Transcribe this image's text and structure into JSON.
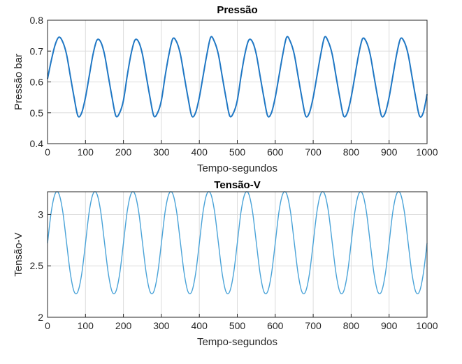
{
  "chart_data": [
    {
      "type": "line",
      "title": "Pressão",
      "xlabel": "Tempo-segundos",
      "ylabel": "Pressão bar",
      "xlim": [
        0,
        1000
      ],
      "ylim": [
        0.4,
        0.8
      ],
      "xticks": [
        "0",
        "100",
        "200",
        "300",
        "400",
        "500",
        "600",
        "700",
        "800",
        "900",
        "1000"
      ],
      "yticks": [
        "0.4",
        "0.5",
        "0.6",
        "0.7",
        "0.8"
      ],
      "grid": true,
      "color": "#1f77c4",
      "series": [
        {
          "x": [
            0,
            10,
            20,
            30,
            40,
            50,
            60,
            70,
            80,
            90,
            100,
            110,
            120,
            130,
            140,
            150,
            160,
            170,
            180,
            190,
            200,
            210,
            220,
            230,
            240,
            250,
            260,
            270,
            280,
            290,
            300,
            310,
            320,
            330,
            340,
            350,
            360,
            370,
            380,
            390,
            400,
            410,
            420,
            430,
            440,
            450,
            460,
            470,
            480,
            490,
            500,
            510,
            520,
            530,
            540,
            550,
            560,
            570,
            580,
            590,
            600,
            610,
            620,
            630,
            640,
            650,
            660,
            670,
            680,
            690,
            700,
            710,
            720,
            730,
            740,
            750,
            760,
            770,
            780,
            790,
            800,
            810,
            820,
            830,
            840,
            850,
            860,
            870,
            880,
            890,
            900,
            910,
            920,
            930,
            940,
            950,
            960,
            970,
            980,
            990,
            1000
          ],
          "y": [
            0.61,
            0.67,
            0.72,
            0.745,
            0.73,
            0.69,
            0.62,
            0.55,
            0.49,
            0.5,
            0.55,
            0.62,
            0.69,
            0.735,
            0.73,
            0.69,
            0.62,
            0.55,
            0.49,
            0.5,
            0.54,
            0.62,
            0.69,
            0.735,
            0.73,
            0.69,
            0.62,
            0.55,
            0.49,
            0.5,
            0.54,
            0.62,
            0.69,
            0.74,
            0.73,
            0.69,
            0.62,
            0.55,
            0.49,
            0.5,
            0.55,
            0.62,
            0.69,
            0.745,
            0.73,
            0.69,
            0.62,
            0.55,
            0.49,
            0.5,
            0.54,
            0.62,
            0.69,
            0.735,
            0.73,
            0.69,
            0.62,
            0.55,
            0.49,
            0.5,
            0.55,
            0.62,
            0.69,
            0.745,
            0.73,
            0.69,
            0.62,
            0.55,
            0.49,
            0.5,
            0.55,
            0.62,
            0.69,
            0.745,
            0.73,
            0.69,
            0.62,
            0.55,
            0.49,
            0.5,
            0.55,
            0.62,
            0.69,
            0.74,
            0.73,
            0.69,
            0.62,
            0.55,
            0.49,
            0.5,
            0.55,
            0.62,
            0.69,
            0.74,
            0.73,
            0.69,
            0.62,
            0.55,
            0.49,
            0.5,
            0.56
          ]
        }
      ]
    },
    {
      "type": "line",
      "title": "Tensão-V",
      "xlabel": "Tempo-segundos",
      "ylabel": "Tensão-V",
      "xlim": [
        0,
        1000
      ],
      "ylim": [
        2,
        3.22
      ],
      "xticks": [
        "0",
        "100",
        "200",
        "300",
        "400",
        "500",
        "600",
        "700",
        "800",
        "900",
        "1000"
      ],
      "yticks": [
        "2",
        "2.5",
        "3"
      ],
      "grid": true,
      "color": "#4aa3d8",
      "series": [
        {
          "x": [
            0,
            10,
            20,
            30,
            40,
            50,
            60,
            70,
            80,
            90,
            100,
            110,
            120,
            130,
            140,
            150,
            160,
            170,
            180,
            190,
            200,
            210,
            220,
            230,
            240,
            250,
            260,
            270,
            280,
            290,
            300,
            310,
            320,
            330,
            340,
            350,
            360,
            370,
            380,
            390,
            400,
            410,
            420,
            430,
            440,
            450,
            460,
            470,
            480,
            490,
            500,
            510,
            520,
            530,
            540,
            550,
            560,
            570,
            580,
            590,
            600,
            610,
            620,
            630,
            640,
            650,
            660,
            670,
            680,
            690,
            700,
            710,
            720,
            730,
            740,
            750,
            760,
            770,
            780,
            790,
            800,
            810,
            820,
            830,
            840,
            850,
            860,
            870,
            880,
            890,
            900,
            910,
            920,
            930,
            940,
            950,
            960,
            970,
            980,
            990,
            1000
          ],
          "y": [
            2.72,
            3.03,
            3.2,
            3.2,
            3.03,
            2.73,
            2.43,
            2.25,
            2.25,
            2.42,
            2.72,
            3.03,
            3.2,
            3.2,
            3.03,
            2.73,
            2.43,
            2.25,
            2.25,
            2.42,
            2.72,
            3.03,
            3.2,
            3.2,
            3.03,
            2.73,
            2.43,
            2.25,
            2.25,
            2.42,
            2.72,
            3.03,
            3.2,
            3.2,
            3.03,
            2.73,
            2.43,
            2.25,
            2.25,
            2.42,
            2.72,
            3.03,
            3.2,
            3.2,
            3.03,
            2.73,
            2.43,
            2.25,
            2.25,
            2.42,
            2.72,
            3.03,
            3.2,
            3.2,
            3.03,
            2.73,
            2.43,
            2.25,
            2.25,
            2.42,
            2.72,
            3.03,
            3.2,
            3.2,
            3.03,
            2.73,
            2.43,
            2.25,
            2.25,
            2.42,
            2.72,
            3.03,
            3.2,
            3.2,
            3.03,
            2.73,
            2.43,
            2.25,
            2.25,
            2.42,
            2.72,
            3.03,
            3.2,
            3.2,
            3.03,
            2.73,
            2.43,
            2.25,
            2.25,
            2.42,
            2.72,
            3.03,
            3.2,
            3.2,
            3.03,
            2.73,
            2.43,
            2.25,
            2.25,
            2.42,
            2.72
          ]
        }
      ]
    }
  ]
}
